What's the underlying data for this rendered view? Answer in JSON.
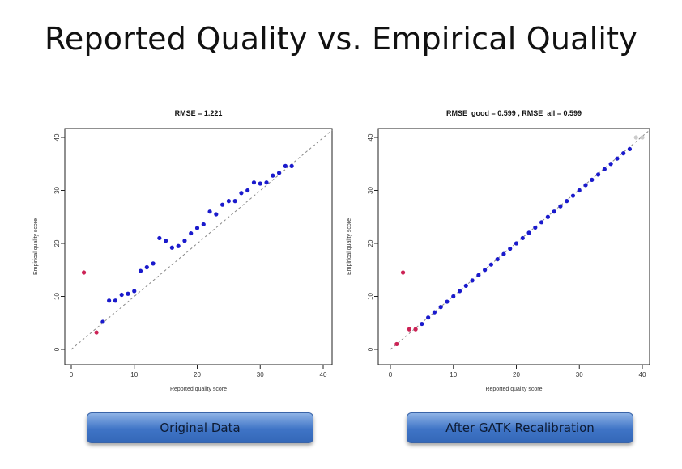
{
  "slide_title": "Reported Quality vs. Empirical Quality",
  "labels": {
    "left_button": "Original Data",
    "right_button": "After GATK Recalibration"
  },
  "chart_data": [
    {
      "type": "scatter",
      "title": "RMSE = 1.221",
      "xlabel": "Reported quality score",
      "ylabel": "Empirical quality score",
      "xlim": [
        0,
        40
      ],
      "ylim": [
        0,
        40
      ],
      "xticks": [
        0,
        10,
        20,
        30,
        40
      ],
      "yticks": [
        0,
        10,
        20,
        30,
        40
      ],
      "reference_line": "y = x (dashed)",
      "series": [
        {
          "color": "#cc2255",
          "points": [
            [
              2,
              14.5
            ],
            [
              4,
              3.2
            ]
          ]
        },
        {
          "color": "#1a1acc",
          "points": [
            [
              5,
              5.2
            ],
            [
              6,
              9.2
            ],
            [
              7,
              9.2
            ],
            [
              8,
              10.3
            ],
            [
              9,
              10.5
            ],
            [
              10,
              11.0
            ],
            [
              11,
              14.8
            ],
            [
              12,
              15.5
            ],
            [
              13,
              16.2
            ],
            [
              14,
              21.0
            ],
            [
              15,
              20.5
            ],
            [
              16,
              19.2
            ],
            [
              17,
              19.5
            ],
            [
              18,
              20.5
            ],
            [
              19,
              21.9
            ],
            [
              20,
              22.9
            ],
            [
              21,
              23.6
            ],
            [
              22,
              26.0
            ],
            [
              23,
              25.5
            ],
            [
              24,
              27.3
            ],
            [
              25,
              28.0
            ],
            [
              26,
              28.0
            ],
            [
              27,
              29.5
            ],
            [
              28,
              30.0
            ],
            [
              29,
              31.5
            ],
            [
              30,
              31.3
            ],
            [
              31,
              31.5
            ],
            [
              32,
              32.8
            ],
            [
              33,
              33.3
            ],
            [
              34,
              34.6
            ],
            [
              35,
              34.6
            ]
          ]
        }
      ]
    },
    {
      "type": "scatter",
      "title": "RMSE_good = 0.599 , RMSE_all = 0.599",
      "xlabel": "Reported quality score",
      "ylabel": "Empirical quality score",
      "xlim": [
        0,
        40
      ],
      "ylim": [
        0,
        40
      ],
      "xticks": [
        0,
        10,
        20,
        30,
        40
      ],
      "yticks": [
        0,
        10,
        20,
        30,
        40
      ],
      "reference_line": "y = x (dashed)",
      "series": [
        {
          "color": "#cc2255",
          "points": [
            [
              1,
              1.0
            ],
            [
              2,
              14.5
            ],
            [
              3,
              3.8
            ],
            [
              4,
              3.8
            ]
          ]
        },
        {
          "color": "#1a1acc",
          "points": [
            [
              5,
              4.8
            ],
            [
              6,
              6.0
            ],
            [
              7,
              7.0
            ],
            [
              8,
              8.0
            ],
            [
              9,
              9.0
            ],
            [
              10,
              10.0
            ],
            [
              11,
              11.0
            ],
            [
              12,
              12.0
            ],
            [
              13,
              13.0
            ],
            [
              14,
              14.0
            ],
            [
              15,
              15.0
            ],
            [
              16,
              16.0
            ],
            [
              17,
              17.0
            ],
            [
              18,
              18.0
            ],
            [
              19,
              19.0
            ],
            [
              20,
              20.0
            ],
            [
              21,
              21.0
            ],
            [
              22,
              22.0
            ],
            [
              23,
              23.0
            ],
            [
              24,
              24.0
            ],
            [
              25,
              25.0
            ],
            [
              26,
              26.0
            ],
            [
              27,
              27.0
            ],
            [
              28,
              28.0
            ],
            [
              29,
              29.0
            ],
            [
              30,
              30.0
            ],
            [
              31,
              31.0
            ],
            [
              32,
              32.0
            ],
            [
              33,
              33.0
            ],
            [
              34,
              34.0
            ],
            [
              35,
              35.0
            ],
            [
              36,
              36.0
            ],
            [
              37,
              37.0
            ],
            [
              38,
              37.8
            ]
          ]
        },
        {
          "color": "#cccccc",
          "points": [
            [
              39,
              40.0
            ],
            [
              40,
              40.0
            ]
          ]
        }
      ]
    }
  ]
}
